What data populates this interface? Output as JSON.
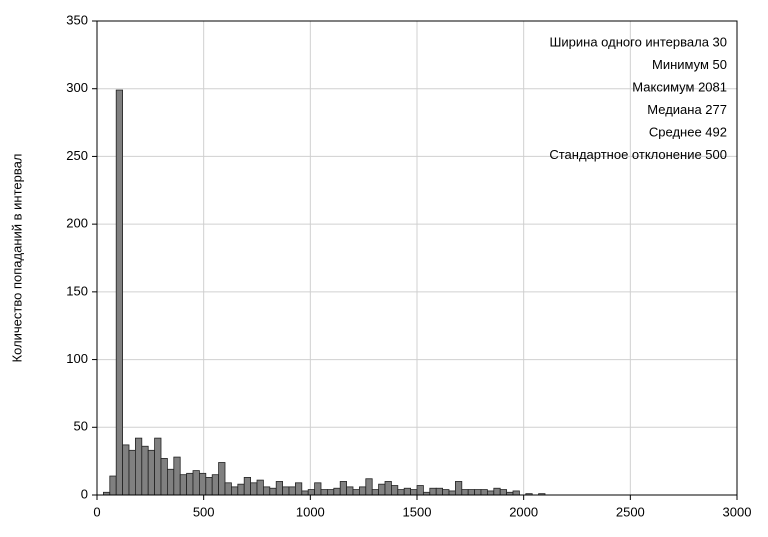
{
  "chart_data": {
    "type": "histogram",
    "y_label": "Количество попаданий в интервал",
    "annotations": [
      "Ширина одного интервала 30",
      "Минимум 50",
      "Максимум 2081",
      "Медиана 277",
      "Среднее 492",
      "Стандартное отклонение 500"
    ],
    "bins": [
      30,
      60,
      90,
      120,
      150,
      180,
      210,
      240,
      270,
      300,
      330,
      360,
      390,
      420,
      450,
      480,
      510,
      540,
      570,
      600,
      630,
      660,
      690,
      720,
      750,
      780,
      810,
      840,
      870,
      900,
      930,
      960,
      990,
      1020,
      1050,
      1080,
      1110,
      1140,
      1170,
      1200,
      1230,
      1260,
      1290,
      1320,
      1350,
      1380,
      1410,
      1440,
      1470,
      1500,
      1530,
      1560,
      1590,
      1620,
      1650,
      1680,
      1710,
      1740,
      1770,
      1800,
      1830,
      1860,
      1890,
      1920,
      1950,
      1980,
      2010,
      2040,
      2070,
      2100
    ],
    "values": [
      2,
      14,
      299,
      37,
      33,
      42,
      36,
      33,
      42,
      27,
      19,
      28,
      15,
      16,
      18,
      16,
      13,
      15,
      24,
      9,
      6,
      8,
      13,
      9,
      11,
      6,
      5,
      10,
      6,
      6,
      9,
      3,
      4,
      9,
      4,
      4,
      5,
      10,
      6,
      4,
      6,
      12,
      4,
      8,
      10,
      7,
      4,
      5,
      4,
      7,
      2,
      5,
      5,
      4,
      3,
      10,
      4,
      4,
      4,
      4,
      3,
      5,
      4,
      2,
      3,
      0,
      1,
      0,
      1
    ],
    "color": "#808080",
    "xlim": [
      0,
      3000
    ],
    "xticks": [
      0,
      500,
      1000,
      1500,
      2000,
      2500,
      3000
    ],
    "ylim": [
      0,
      350
    ],
    "yticks": [
      0,
      50,
      100,
      150,
      200,
      250,
      300,
      350
    ],
    "grid": true
  }
}
